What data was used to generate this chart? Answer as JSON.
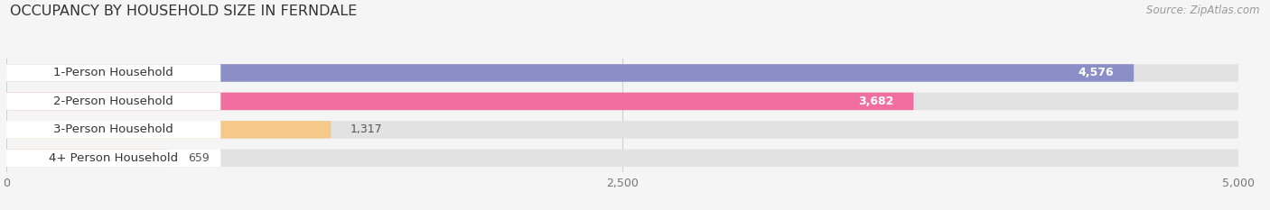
{
  "title": "OCCUPANCY BY HOUSEHOLD SIZE IN FERNDALE",
  "source": "Source: ZipAtlas.com",
  "categories": [
    "1-Person Household",
    "2-Person Household",
    "3-Person Household",
    "4+ Person Household"
  ],
  "values": [
    4576,
    3682,
    1317,
    659
  ],
  "bar_colors": [
    "#8b8fc8",
    "#f06fa0",
    "#f5c98a",
    "#f5a8a8"
  ],
  "xlim": [
    0,
    5000
  ],
  "xticks": [
    0,
    2500,
    5000
  ],
  "background_color": "#f5f5f5",
  "bg_bar_color": "#e2e2e2",
  "white_label_color": "#ffffff",
  "title_fontsize": 11.5,
  "source_fontsize": 8.5,
  "tick_fontsize": 9,
  "label_fontsize": 9.5,
  "value_fontsize": 9
}
